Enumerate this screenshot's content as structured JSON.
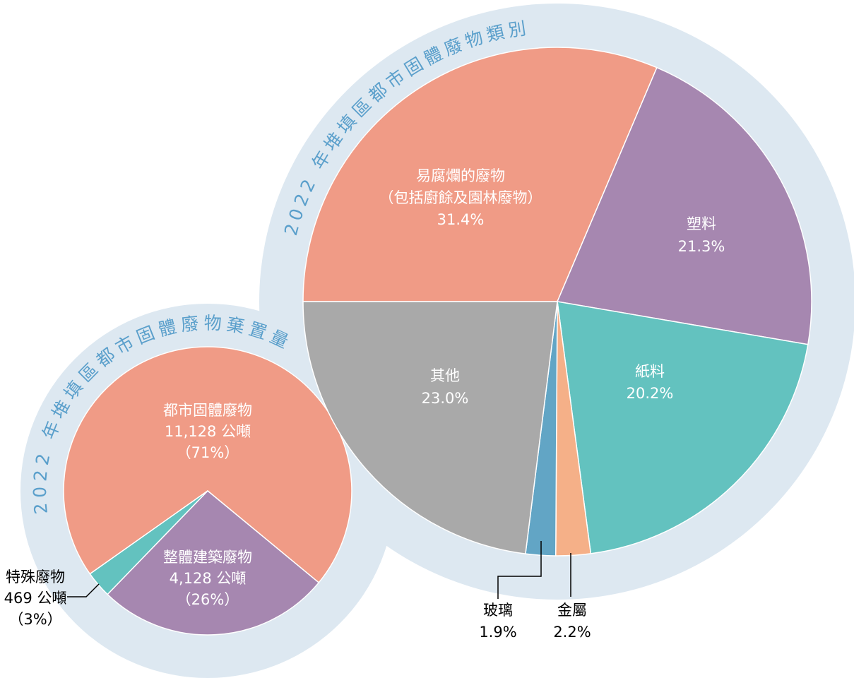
{
  "chart_data": [
    {
      "type": "pie",
      "title": "2022 年堆填區都市固體廢物棄置量",
      "categories": [
        [
          "都市固體廢物"
        ],
        [
          "整體建築廢物"
        ],
        [
          "特殊廢物"
        ]
      ],
      "values": [
        11128,
        4128,
        469
      ],
      "value_labels": [
        "11,128 公噸",
        "4,128 公噸",
        "469 公噸"
      ],
      "percents": [
        71,
        26,
        3
      ],
      "percent_labels": [
        "（71%）",
        "（26%）",
        "（3%）"
      ],
      "colors": [
        "#f09b86",
        "#a687b0",
        "#63c2bf"
      ]
    },
    {
      "type": "pie",
      "title": "2022 年堆填區都市固體廢物類別",
      "categories": [
        [
          "易腐爛的廢物",
          "（包括廚餘及園林廢物）"
        ],
        [
          "塑料"
        ],
        [
          "紙料"
        ],
        [
          "金屬"
        ],
        [
          "玻璃"
        ],
        [
          "其他"
        ]
      ],
      "values": [
        31.4,
        21.3,
        20.2,
        2.2,
        1.9,
        23.0
      ],
      "value_labels": [
        "31.4%",
        "21.3%",
        "20.2%",
        "2.2%",
        "1.9%",
        "23.0%"
      ],
      "colors": [
        "#f09b86",
        "#a687b0",
        "#63c2bf",
        "#f5b088",
        "#62a5c5",
        "#a9a9a9"
      ]
    }
  ]
}
